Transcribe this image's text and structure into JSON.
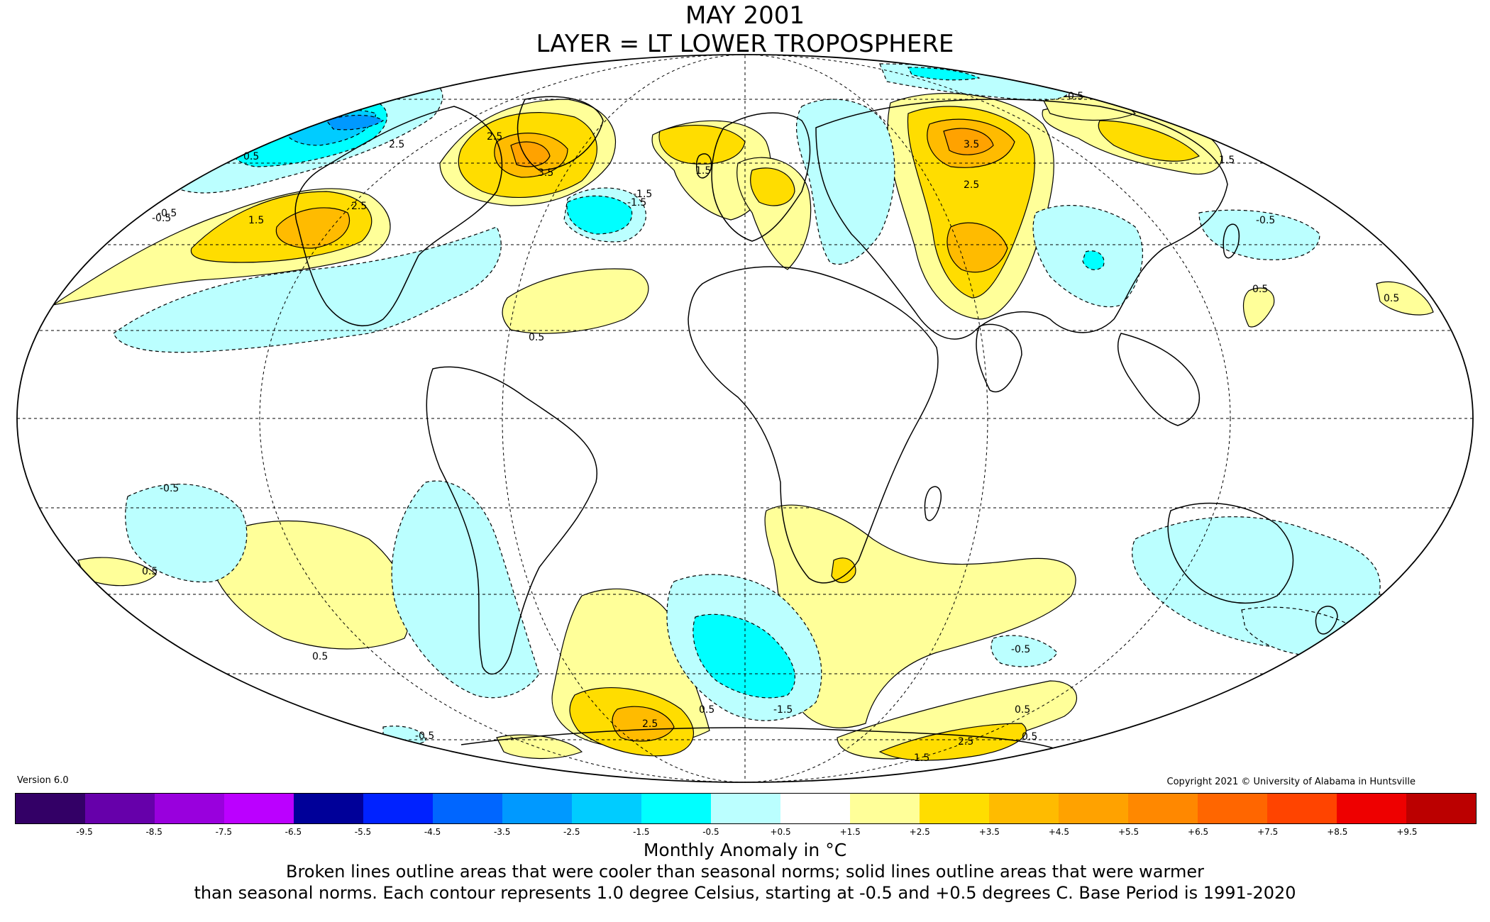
{
  "header": {
    "title_line1": "MAY 2001",
    "title_line2": "LAYER = LT LOWER TROPOSPHERE"
  },
  "version_label": "Version 6.0",
  "copyright": "Copyright 2021 © University of Alabama in Huntsville",
  "legend": {
    "colors": [
      "#330066",
      "#6600aa",
      "#9900dd",
      "#bb00ff",
      "#000099",
      "#0022ff",
      "#0066ff",
      "#0099ff",
      "#00ccff",
      "#00ffff",
      "#bbffff",
      "#ffffff",
      "#ffff99",
      "#ffdd00",
      "#ffbb00",
      "#ffa200",
      "#ff8800",
      "#ff6600",
      "#ff4400",
      "#ee0000",
      "#bb0000"
    ],
    "ticks": [
      "-9.5",
      "-8.5",
      "-7.5",
      "-6.5",
      "-5.5",
      "-4.5",
      "-3.5",
      "-2.5",
      "-1.5",
      "-0.5",
      "+0.5",
      "+1.5",
      "+2.5",
      "+3.5",
      "+4.5",
      "+5.5",
      "+6.5",
      "+7.5",
      "+8.5",
      "+9.5"
    ],
    "unit_label": "Monthly Anomaly in °C"
  },
  "footnote": {
    "line1": "Broken lines outline areas that were cooler than seasonal norms; solid lines outline areas that were warmer",
    "line2": "than seasonal norms. Each contour represents 1.0 degree Celsius, starting at -0.5 and +0.5 degrees C. Base Period is 1991-2020"
  },
  "map": {
    "contour_labels": [
      "0.5",
      "1.5",
      "2.5",
      "3.5",
      "-0.5",
      "-1.5",
      "2.5",
      "0.5",
      "1.5",
      "3.5",
      "2.5",
      "1.5",
      "2.5",
      "-0.5",
      "0.5",
      "-0.5",
      "-1.5",
      "-0.5",
      "0.5",
      "0.5",
      "-0.5",
      "-1.5",
      "2.5",
      "0.5",
      "1.5",
      "2.5",
      "0.5",
      "-0.5",
      "-0.5",
      "0.5",
      "0.5"
    ]
  }
}
